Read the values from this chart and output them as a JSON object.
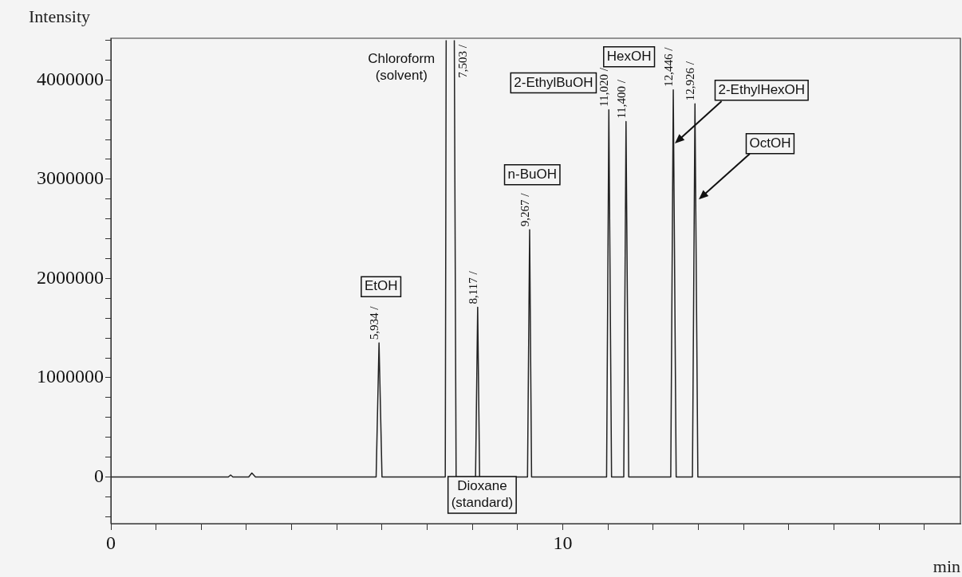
{
  "chart_data": {
    "type": "line",
    "ylabel": "Intensity",
    "xlabel": "min",
    "xlim": [
      0,
      18.8
    ],
    "ylim": [
      -470000,
      4420000
    ],
    "xticks": [
      0,
      {
        "value": 1,
        "label": null
      },
      {
        "value": 2,
        "label": null
      },
      {
        "value": 3,
        "label": null
      },
      {
        "value": 4,
        "label": null
      },
      {
        "value": 5,
        "label": null
      },
      {
        "value": 6,
        "label": null
      },
      {
        "value": 7,
        "label": null
      },
      {
        "value": 8,
        "label": null
      },
      {
        "value": 9,
        "label": null
      },
      10,
      {
        "value": 11,
        "label": null
      },
      {
        "value": 12,
        "label": null
      },
      {
        "value": 13,
        "label": null
      },
      {
        "value": 14,
        "label": null
      },
      {
        "value": 15,
        "label": null
      },
      {
        "value": 16,
        "label": null
      },
      {
        "value": 17,
        "label": null
      },
      {
        "value": 18,
        "label": null
      }
    ],
    "yticks": [
      {
        "value": -400000,
        "label": null
      },
      {
        "value": -200000,
        "label": null
      },
      0,
      {
        "value": 200000,
        "label": null
      },
      {
        "value": 400000,
        "label": null
      },
      {
        "value": 600000,
        "label": null
      },
      {
        "value": 800000,
        "label": null
      },
      1000000,
      {
        "value": 1200000,
        "label": null
      },
      {
        "value": 1400000,
        "label": null
      },
      {
        "value": 1600000,
        "label": null
      },
      {
        "value": 1800000,
        "label": null
      },
      2000000,
      {
        "value": 2200000,
        "label": null
      },
      {
        "value": 2400000,
        "label": null
      },
      {
        "value": 2600000,
        "label": null
      },
      {
        "value": 2800000,
        "label": null
      },
      3000000,
      {
        "value": 3200000,
        "label": null
      },
      {
        "value": 3400000,
        "label": null
      },
      {
        "value": 3600000,
        "label": null
      },
      {
        "value": 3800000,
        "label": null
      },
      4000000,
      {
        "value": 4200000,
        "label": null
      },
      {
        "value": 4400000,
        "label": null
      }
    ],
    "grid": false,
    "legend": false,
    "marker": "none",
    "series": [
      {
        "color": "#222222",
        "x": [
          0,
          2.6,
          2.65,
          2.7,
          3.05,
          3.12,
          3.2,
          5.87,
          5.934,
          6.0,
          7.4,
          7.42,
          7.503,
          7.6,
          7.64,
          8.07,
          8.117,
          8.16,
          9.22,
          9.267,
          9.31,
          10.97,
          11.02,
          11.08,
          11.35,
          11.4,
          11.46,
          12.39,
          12.446,
          12.51,
          12.87,
          12.926,
          12.99,
          18.8
        ],
        "values": [
          0,
          0,
          20000,
          0,
          0,
          40000,
          0,
          0,
          1350000,
          0,
          0,
          4400000,
          null,
          4400000,
          0,
          0,
          1710000,
          0,
          0,
          2490000,
          0,
          0,
          3700000,
          0,
          0,
          3580000,
          0,
          0,
          3900000,
          0,
          0,
          3760000,
          0,
          0
        ],
        "line_style": "solid"
      }
    ],
    "annotations": [
      "EtOH",
      "Chloroform\n(solvent)",
      "Dioxane\n(standard)",
      "n-BuOH",
      "2-EthylBuOH",
      "HexOH",
      "2-EthylHexOH",
      "OctOH",
      {
        "text": "5,934 /",
        "x": 5.934,
        "y": 1350000
      },
      {
        "text": "7,503 /",
        "x": 7.503,
        "y": 4400000
      },
      {
        "text": "8,117 /",
        "x": 8.117,
        "y": 1710000
      },
      {
        "text": "9,267 /",
        "x": 9.267,
        "y": 2490000
      },
      {
        "text": "11,020 /",
        "x": 11.02,
        "y": 3700000
      },
      {
        "text": "11,400 /",
        "x": 11.4,
        "y": 3580000
      },
      {
        "text": "12,446 /",
        "x": 12.446,
        "y": 3900000
      },
      {
        "text": "12,926 /",
        "x": 12.926,
        "y": 3760000
      }
    ]
  }
}
